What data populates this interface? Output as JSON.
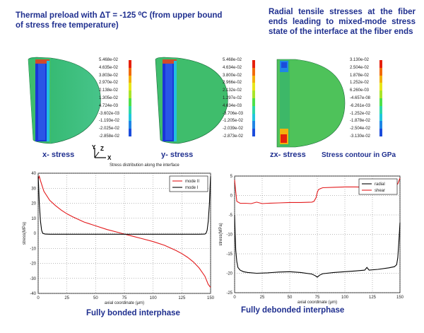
{
  "titles": {
    "left": "Thermal preload with ΔT = -125 ⁰C (from upper bound of stress free temperature)",
    "right": "Radial tensile stresses at the fiber ends leading to mixed-mode stress state of the interface at the fiber ends"
  },
  "contours": {
    "x_labels": [
      "5.468e-02",
      "4.635e-02",
      "3.803e-02",
      "2.970e-02",
      "2.138e-02",
      "1.305e-02",
      "4.724e-03",
      "-3.602e-03",
      "-1.193e-02",
      "-2.025e-02",
      "-2.858e-02"
    ],
    "y_labels": [
      "5.468e-02",
      "4.634e-02",
      "3.800e-02",
      "2.966e-02",
      "2.132e-02",
      "1.297e-02",
      "4.634e-03",
      "-3.706e-03",
      "-1.205e-02",
      "-2.039e-02",
      "-2.873e-02"
    ],
    "zx_labels": [
      "3.130e-02",
      "2.504e-02",
      "1.878e-02",
      "1.252e-02",
      "6.260e-03",
      "-4.657e-08",
      "-6.261e-03",
      "-1.252e-02",
      "-1.878e-02",
      "-2.504e-02",
      "-3.130e-02"
    ],
    "scale_colors": [
      "#e5200c",
      "#f26b0c",
      "#f2b10d",
      "#e8e61a",
      "#a9e42a",
      "#4ee04a",
      "#2ed8a6",
      "#21c6dc",
      "#1f86e6",
      "#1b4cdc",
      "#1b23c7"
    ]
  },
  "captions": {
    "x_stress": "x- stress",
    "y_stress": "y- stress",
    "zx_stress": "zx- stress",
    "unit": "Stress contour in GPa",
    "axis_y": "Y",
    "axis_z": "Z",
    "axis_x": "X",
    "interface_note": "Stress distribution along the interface"
  },
  "bottom": {
    "left_caption": "Fully bonded interphase",
    "right_caption": "Fully debonded interphase"
  },
  "chart_data": [
    {
      "type": "line",
      "xlabel": "axial coordinate (μm)",
      "ylabel": "stress(MPa)",
      "xlim": [
        0,
        150
      ],
      "ylim": [
        -40,
        40
      ],
      "xticks": [
        0,
        25,
        50,
        75,
        100,
        125,
        150
      ],
      "yticks": [
        40,
        30,
        20,
        10,
        0,
        -10,
        -20,
        -30,
        -40
      ],
      "grid": true,
      "legend_position": "top-right",
      "series": [
        {
          "name": "mode II",
          "color": "#e31a1c",
          "x": [
            0,
            1,
            2,
            5,
            10,
            15,
            20,
            25,
            30,
            40,
            50,
            60,
            70,
            75,
            80,
            90,
            100,
            110,
            120,
            125,
            130,
            135,
            140,
            145,
            148,
            150
          ],
          "y": [
            36,
            38,
            35,
            28,
            22,
            18.5,
            15.5,
            13,
            11,
            7.5,
            5,
            2.5,
            0.5,
            -0.5,
            -1.5,
            -3.5,
            -5.5,
            -8,
            -11.5,
            -13.5,
            -16,
            -19,
            -23,
            -28.5,
            -34,
            -36
          ]
        },
        {
          "name": "mode I",
          "color": "#000000",
          "x": [
            0,
            0.5,
            1,
            2,
            3,
            4,
            6,
            10,
            30,
            60,
            90,
            120,
            140,
            145,
            146,
            147,
            148,
            149,
            149.5,
            150
          ],
          "y": [
            38,
            30,
            20,
            8,
            2,
            0,
            -0.5,
            -0.6,
            -0.6,
            -0.6,
            -0.6,
            -0.6,
            -0.6,
            -0.5,
            0,
            2,
            8,
            20,
            30,
            38
          ]
        }
      ]
    },
    {
      "type": "line",
      "xlabel": "axial coordinate (μm)",
      "ylabel": "stress(MPa)",
      "xlim": [
        0,
        150
      ],
      "ylim": [
        -25,
        5
      ],
      "xticks": [
        0,
        25,
        50,
        75,
        100,
        125,
        150
      ],
      "yticks": [
        5,
        0,
        -5,
        -10,
        -15,
        -20,
        -25
      ],
      "grid": true,
      "legend_position": "top-right",
      "series": [
        {
          "name": "radial",
          "color": "#000000",
          "x": [
            0,
            0.5,
            1,
            2,
            3,
            5,
            8,
            12,
            20,
            30,
            40,
            50,
            60,
            70,
            73,
            75,
            77,
            80,
            90,
            100,
            110,
            118,
            120,
            122,
            130,
            140,
            145,
            147,
            148,
            149,
            150
          ],
          "y": [
            -5,
            -10,
            -14,
            -17,
            -18.5,
            -19.2,
            -19.6,
            -19.8,
            -20,
            -19.9,
            -19.7,
            -19.6,
            -19.8,
            -20.2,
            -20.6,
            -21,
            -20.5,
            -20.1,
            -19.8,
            -19.6,
            -19.4,
            -19.2,
            -18.5,
            -19.2,
            -19,
            -18.6,
            -18.3,
            -17.8,
            -16,
            -12,
            -7
          ]
        },
        {
          "name": "shear",
          "color": "#e31a1c",
          "x": [
            0,
            1,
            2,
            5,
            10,
            15,
            20,
            25,
            30,
            40,
            50,
            60,
            70,
            72,
            74,
            75,
            76,
            78,
            80,
            90,
            100,
            110,
            120,
            130,
            140,
            145,
            148,
            150
          ],
          "y": [
            4,
            1,
            -1.5,
            -2,
            -2,
            -2.1,
            -1.7,
            -2.1,
            -2,
            -1.9,
            -1.8,
            -1.8,
            -1.7,
            -1.5,
            -0.5,
            0.8,
            1.5,
            1.8,
            2,
            2.1,
            2.2,
            2.2,
            2.1,
            2.2,
            2.2,
            2.3,
            3,
            4.5
          ]
        }
      ]
    }
  ]
}
